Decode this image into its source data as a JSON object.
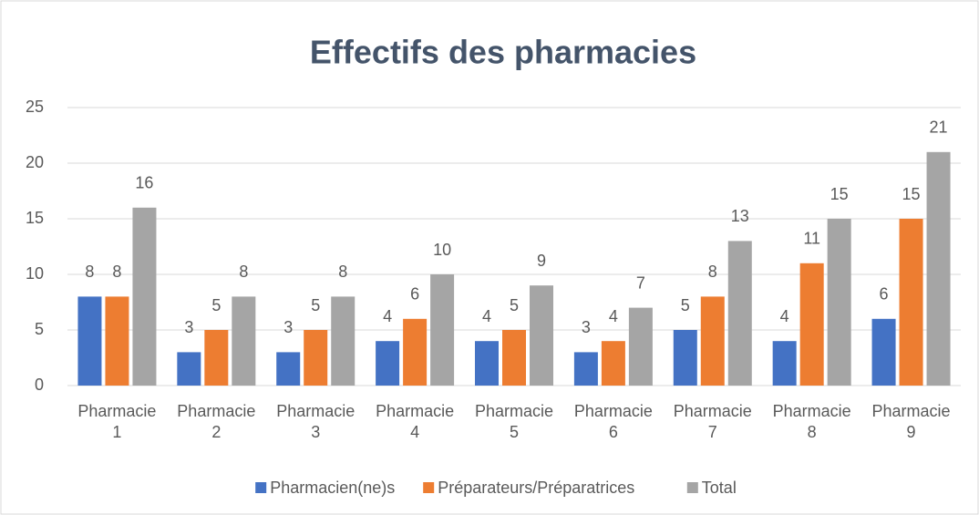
{
  "chart_data": {
    "type": "bar",
    "title": "Effectifs des pharmacies",
    "categories": [
      "Pharmacie 1",
      "Pharmacie 2",
      "Pharmacie 3",
      "Pharmacie 4",
      "Pharmacie 5",
      "Pharmacie 6",
      "Pharmacie 7",
      "Pharmacie 8",
      "Pharmacie 9"
    ],
    "series": [
      {
        "name": "Pharmacien(ne)s",
        "color": "#4472c4",
        "values": [
          8,
          3,
          3,
          4,
          4,
          3,
          5,
          4,
          6
        ]
      },
      {
        "name": "Préparateurs/Préparatrices",
        "color": "#ed7d31",
        "values": [
          8,
          5,
          5,
          6,
          5,
          4,
          8,
          11,
          15
        ]
      },
      {
        "name": "Total",
        "color": "#a5a5a5",
        "values": [
          16,
          8,
          8,
          10,
          9,
          7,
          13,
          15,
          21
        ]
      }
    ],
    "ylim": [
      0,
      25
    ],
    "yticks": [
      0,
      5,
      10,
      15,
      20,
      25
    ],
    "grid": true,
    "legend": "bottom"
  }
}
